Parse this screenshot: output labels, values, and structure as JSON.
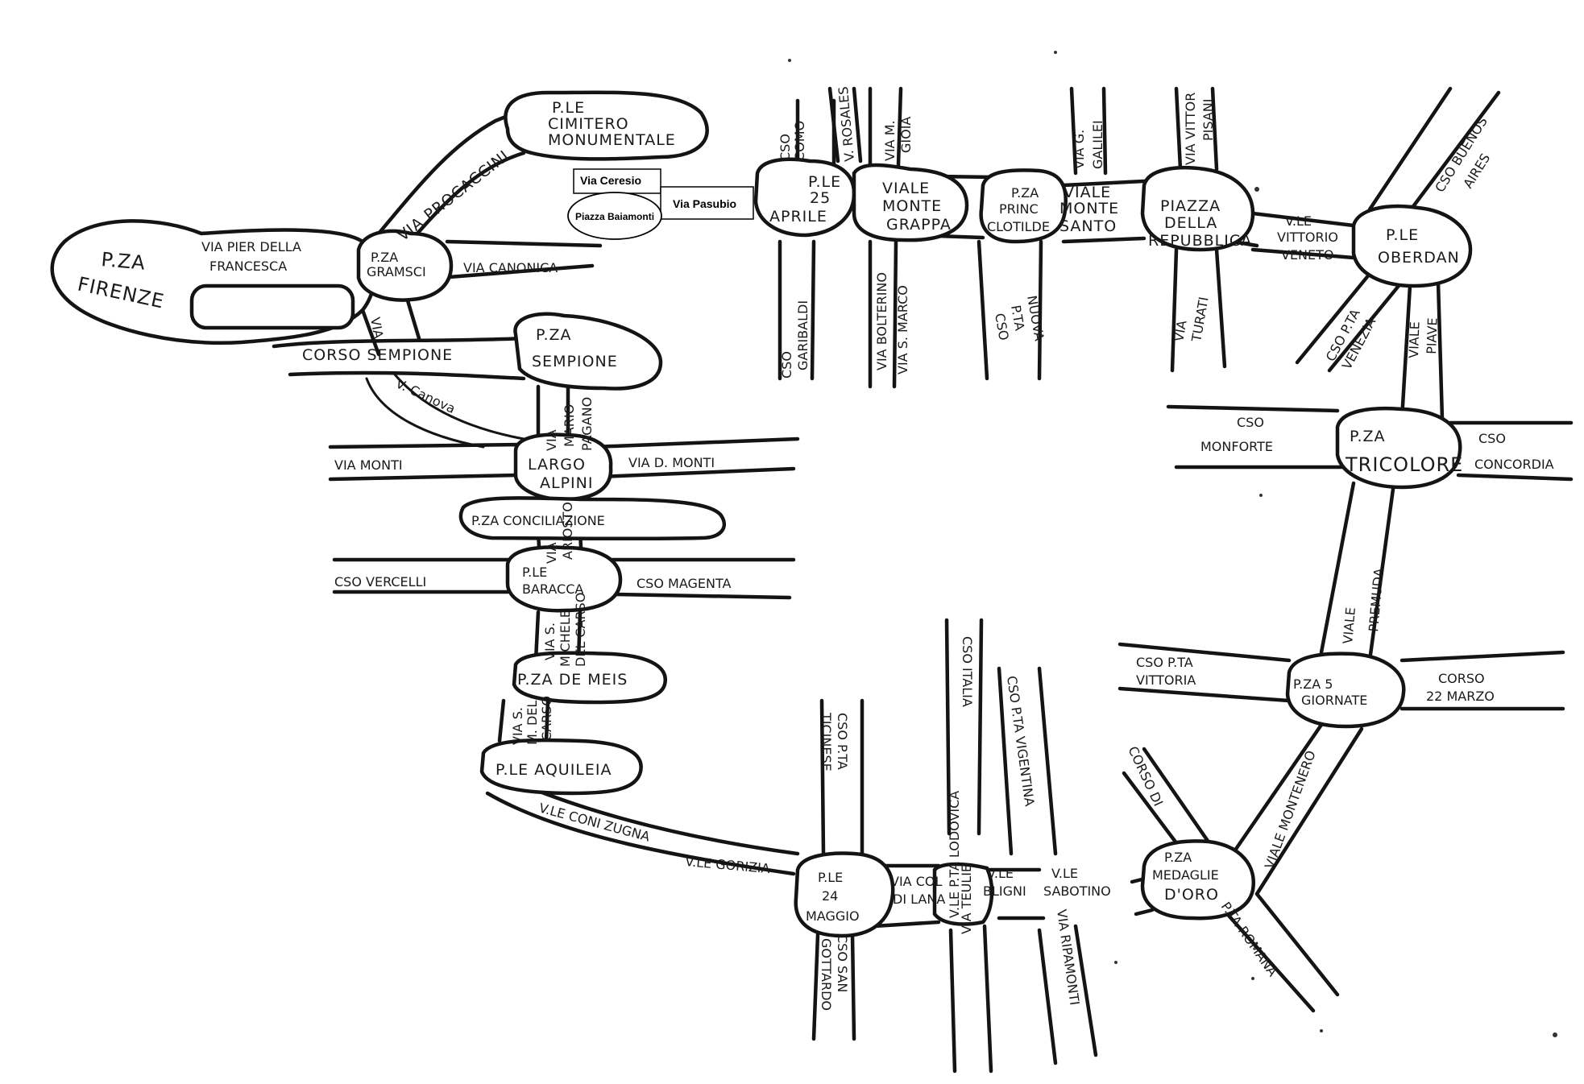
{
  "map": {
    "squares": {
      "cimitero_1": "P.LE",
      "cimitero_2": "CIMITERO",
      "cimitero_3": "MONUMENTALE",
      "firenze_1": "P.ZA",
      "firenze_2": "FIRENZE",
      "gramsci_1": "P.ZA",
      "gramsci_2": "GRAMSCI",
      "sempione_1": "P.ZA",
      "sempione_2": "SEMPIONE",
      "largo_alpini_1": "LARGO",
      "largo_alpini_2": "ALPINI",
      "conciliazione": "P.ZA CONCILIAZIONE",
      "baracca_1": "P.LE",
      "baracca_2": "BARACCA",
      "de_meis": "P.ZA DE MEIS",
      "aquileia": "P.LE AQUILEIA",
      "aprile_1": "P.LE",
      "aprile_2": "25",
      "aprile_3": "APRILE",
      "monte_grappa_1": "VIALE",
      "monte_grappa_2": "MONTE",
      "monte_grappa_3": "GRAPPA",
      "clotilde_1": "P.ZA",
      "clotilde_2": "PRINC",
      "clotilde_3": "CLOTILDE",
      "repubblica_1": "PIAZZA",
      "repubblica_2": "DELLA",
      "repubblica_3": "REPUBBLICA",
      "oberdan_1": "P.LE",
      "oberdan_2": "OBERDAN",
      "tricolore_1": "P.ZA",
      "tricolore_2": "TRICOLORE",
      "cinque_giornate_1": "P.ZA 5",
      "cinque_giornate_2": "GIORNATE",
      "medaglie_1": "P.ZA",
      "medaglie_2": "MEDAGLIE",
      "medaglie_3": "D'ORO",
      "ventiquattro_maggio_1": "P.LE",
      "ventiquattro_maggio_2": "24",
      "ventiquattro_maggio_3": "MAGGIO"
    },
    "streets": {
      "procaccini": "VIA PROCACCINI",
      "pier_della_francesca_1": "VIA PIER DELLA",
      "pier_della_francesca_2": "FRANCESCA",
      "canonica": "VIA CANONICA",
      "via_vertical": "VIA",
      "corso_sempione": "CORSO SEMPIONE",
      "canova": "V. Canova",
      "via_monti": "VIA MONTI",
      "via_d_monti": "VIA D. MONTI",
      "mario_pagano_1": "VIA",
      "mario_pagano_2": "MARIO",
      "mario_pagano_3": "PAGANO",
      "ariosto_1": "VIA",
      "ariosto_2": "ARIOSTO",
      "vercelli": "CSO VERCELLI",
      "magenta": "CSO MAGENTA",
      "michele_carso_1": "VIA S.",
      "michele_carso_2": "MICHELE",
      "michele_carso_3": "DEL CARSO",
      "michele_carso_b_1": "VIA S.",
      "michele_carso_b_2": "M. DEL",
      "michele_carso_b_3": "CARSO",
      "coni_zugna": "V.LE CONI ZUGNA",
      "gorizia": "V.LE GORIZIA",
      "como_1": "CSO",
      "como_2": "COMO",
      "rosales": "V. ROSALES",
      "gioia_1": "VIA M.",
      "gioia_2": "GIOIA",
      "galilei_1": "VIA G.",
      "galilei_2": "GALILEI",
      "vittor_pisani_1": "VIA VITTOR",
      "vittor_pisani_2": "PISANI",
      "buenos_aires_1": "CSO BUENOS",
      "buenos_aires_2": "AIRES",
      "montesanto_1": "VIALE",
      "montesanto_2": "MONTE",
      "montesanto_3": "SANTO",
      "vittorio_veneto_1": "V.LE",
      "vittorio_veneto_2": "VITTORIO",
      "vittorio_veneto_3": "VENETO",
      "garibaldi_1": "CSO",
      "garibaldi_2": "GARIBALDI",
      "volturno": "VIA BOLTERINO",
      "s_marco": "VIA S. MARCO",
      "porta_nuova_1": "CSO",
      "porta_nuova_2": "P.TA",
      "porta_nuova_3": "NUOVA",
      "turati_1": "VIA",
      "turati_2": "TURATI",
      "porta_venezia_1": "CSO P.TA",
      "porta_venezia_2": "VENEZIA",
      "piave_1": "VIALE",
      "piave_2": "PIAVE",
      "monforte_1": "CSO",
      "monforte_2": "MONFORTE",
      "concordia_1": "CSO",
      "concordia_2": "CONCORDIA",
      "premuda_1": "VIALE",
      "premuda_2": "PREMUDA",
      "porta_vittoria_1": "CSO P.TA",
      "porta_vittoria_2": "VITTORIA",
      "ventidue_marzo_1": "CORSO",
      "ventidue_marzo_2": "22 MARZO",
      "montenero": "VIALE MONTENERO",
      "porta_romana_1": "CORSO DI",
      "porta_romana_2": "P.TA ROMANA",
      "ticinese_1": "CSO P.TA",
      "ticinese_2": "TICINESE",
      "italia": "CSO ITALIA",
      "vigentina": "CSO P.TA VIGENTINA",
      "col_di_lana_1": "VIA COL",
      "col_di_lana_2": "DI LANA",
      "lodovica": "V.LE P.TA LODOVICA",
      "bligni_1": "V.LE",
      "bligni_2": "BLIGNI",
      "sabotino_1": "V.LE",
      "sabotino_2": "SABOTINO",
      "ripamonti": "VIA RIPAMONTI",
      "san_gottardo_1": "CSO SAN",
      "san_gottardo_2": "GOTTARDO",
      "val_di_lodi": "VIA TEULIE"
    },
    "overlay": {
      "via_ceresio": "Via Ceresio",
      "via_pasubio": "Via Pasubio",
      "piazza_baiamonti": "Piazza Baiamonti"
    }
  }
}
